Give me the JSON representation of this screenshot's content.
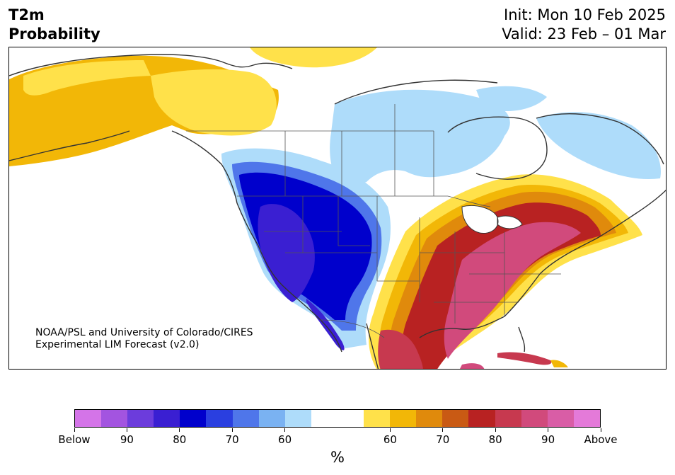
{
  "header": {
    "title_line1": "T2m",
    "title_line2": "Probability",
    "init": "Init: Mon 10 Feb 2025",
    "valid": "Valid: 23 Feb – 01 Mar"
  },
  "credit": {
    "line1": "NOAA/PSL and University of Colorado/CIRES",
    "line2": "Experimental LIM Forecast (v2.0)"
  },
  "colorbar": {
    "colors": [
      "#d474e8",
      "#a354e0",
      "#6c3cdc",
      "#3a1fd2",
      "#0000cc",
      "#2a3fe0",
      "#4f76ea",
      "#7ab2f2",
      "#aedcfa",
      "#ffffff",
      "#ffffff",
      "#ffe14a",
      "#f2b707",
      "#e08a0c",
      "#c95a14",
      "#b82222",
      "#c7394f",
      "#d14a7c",
      "#d95da6",
      "#e47ad9"
    ],
    "labels": [
      "Below",
      "90",
      "80",
      "70",
      "60",
      "60",
      "70",
      "80",
      "90",
      "Above"
    ],
    "units": "%"
  },
  "map": {
    "colors": {
      "ocean": "#ffffff",
      "coast": "#333333",
      "neutral": "#ffffff",
      "light_blue": "#aedcfa",
      "deep_blue": "#0000cc",
      "violet": "#3a1fd2",
      "pale_yellow": "#ffe14a",
      "gold": "#f2b707",
      "orange": "#e08a0c",
      "red": "#b82222",
      "magenta": "#d14a7c"
    }
  }
}
